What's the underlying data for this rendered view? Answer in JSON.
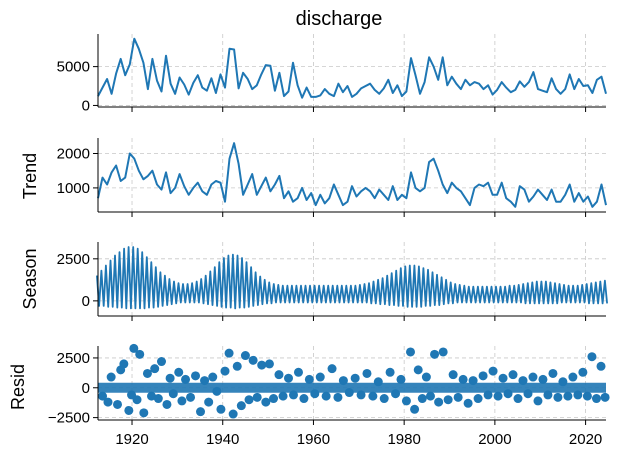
{
  "chart_data": {
    "type": "line",
    "title": "discharge",
    "xlabel": "",
    "xlim": [
      1912.5,
      2024.5
    ],
    "x_ticks": [
      1920,
      1940,
      1960,
      1980,
      2000,
      2020
    ],
    "x_tick_labels": [
      "1920",
      "1940",
      "1960",
      "1980",
      "2000",
      "2020"
    ],
    "colors": {
      "series": "#1f77b4",
      "grid": "#c8c8c8",
      "axis": "#000000"
    },
    "grid": true,
    "panels": [
      {
        "id": "observed",
        "ylabel": "",
        "ylim": [
          -200,
          9200
        ],
        "yticks": [
          0,
          5000
        ],
        "ytick_labels": [
          "0",
          "5000"
        ],
        "style": "line",
        "x": [
          1912.5,
          1913.5,
          1914.5,
          1915.5,
          1916.5,
          1917.5,
          1918.5,
          1919.5,
          1920.5,
          1921.5,
          1922.5,
          1923.5,
          1924.5,
          1925.5,
          1926.5,
          1927.5,
          1928.5,
          1929.5,
          1930.5,
          1931.5,
          1932.5,
          1933.5,
          1934.5,
          1935.5,
          1936.5,
          1937.5,
          1938.5,
          1939.5,
          1940.5,
          1941.5,
          1942.5,
          1943.5,
          1944.5,
          1945.5,
          1946.5,
          1947.5,
          1948.5,
          1949.5,
          1950.5,
          1951.5,
          1952.5,
          1953.5,
          1954.5,
          1955.5,
          1956.5,
          1957.5,
          1958.5,
          1959.5,
          1960.5,
          1961.5,
          1962.5,
          1963.5,
          1964.5,
          1965.5,
          1966.5,
          1967.5,
          1968.5,
          1969.5,
          1970.5,
          1971.5,
          1972.5,
          1973.5,
          1974.5,
          1975.5,
          1976.5,
          1977.5,
          1978.5,
          1979.5,
          1980.5,
          1981.5,
          1982.5,
          1983.5,
          1984.5,
          1985.5,
          1986.5,
          1987.5,
          1988.5,
          1989.5,
          1990.5,
          1991.5,
          1992.5,
          1993.5,
          1994.5,
          1995.5,
          1996.5,
          1997.5,
          1998.5,
          1999.5,
          2000.5,
          2001.5,
          2002.5,
          2003.5,
          2004.5,
          2005.5,
          2006.5,
          2007.5,
          2008.5,
          2009.5,
          2010.5,
          2011.5,
          2012.5,
          2013.5,
          2014.5,
          2015.5,
          2016.5,
          2017.5,
          2018.5,
          2019.5,
          2020.5,
          2021.5,
          2022.5,
          2023.5,
          2024.5
        ],
        "y": [
          1200,
          2300,
          3400,
          1500,
          4100,
          6000,
          3900,
          5300,
          8600,
          7300,
          5500,
          2100,
          6000,
          3200,
          1800,
          6400,
          2800,
          1500,
          3600,
          2700,
          1400,
          2900,
          3900,
          2300,
          1900,
          3500,
          1600,
          4000,
          2300,
          7300,
          7200,
          2200,
          4200,
          3400,
          2100,
          2600,
          4000,
          5200,
          5100,
          1900,
          4200,
          1200,
          1800,
          5500,
          2600,
          1000,
          2300,
          1100,
          1100,
          1300,
          2100,
          1500,
          1200,
          2800,
          1700,
          2500,
          1100,
          1500,
          2200,
          2500,
          2800,
          2000,
          1500,
          2200,
          3300,
          1600,
          2600,
          1200,
          1800,
          6100,
          3900,
          1500,
          3000,
          6200,
          5000,
          3300,
          6200,
          2600,
          3700,
          2800,
          2100,
          3300,
          2600,
          3000,
          2800,
          2100,
          2600,
          1400,
          2000,
          3000,
          2300,
          1700,
          2000,
          3100,
          2400,
          3000,
          4300,
          2100,
          1900,
          1700,
          3500,
          2100,
          1500,
          2100,
          4000,
          2100,
          3400,
          2500,
          2600,
          1600,
          3300,
          3700,
          1500
        ]
      },
      {
        "id": "trend",
        "ylabel": "Trend",
        "ylim": [
          300,
          2450
        ],
        "yticks": [
          1000,
          2000
        ],
        "ytick_labels": [
          "1000",
          "2000"
        ],
        "style": "line",
        "x": [
          1912.5,
          1913.5,
          1914.5,
          1915.5,
          1916.5,
          1917.5,
          1918.5,
          1919.5,
          1920.5,
          1921.5,
          1922.5,
          1923.5,
          1924.5,
          1925.5,
          1926.5,
          1927.5,
          1928.5,
          1929.5,
          1930.5,
          1931.5,
          1932.5,
          1933.5,
          1934.5,
          1935.5,
          1936.5,
          1937.5,
          1938.5,
          1939.5,
          1940.5,
          1941.5,
          1942.5,
          1943.5,
          1944.5,
          1945.5,
          1946.5,
          1947.5,
          1948.5,
          1949.5,
          1950.5,
          1951.5,
          1952.5,
          1953.5,
          1954.5,
          1955.5,
          1956.5,
          1957.5,
          1958.5,
          1959.5,
          1960.5,
          1961.5,
          1962.5,
          1963.5,
          1964.5,
          1965.5,
          1966.5,
          1967.5,
          1968.5,
          1969.5,
          1970.5,
          1971.5,
          1972.5,
          1973.5,
          1974.5,
          1975.5,
          1976.5,
          1977.5,
          1978.5,
          1979.5,
          1980.5,
          1981.5,
          1982.5,
          1983.5,
          1984.5,
          1985.5,
          1986.5,
          1987.5,
          1988.5,
          1989.5,
          1990.5,
          1991.5,
          1992.5,
          1993.5,
          1994.5,
          1995.5,
          1996.5,
          1997.5,
          1998.5,
          1999.5,
          2000.5,
          2001.5,
          2002.5,
          2003.5,
          2004.5,
          2005.5,
          2006.5,
          2007.5,
          2008.5,
          2009.5,
          2010.5,
          2011.5,
          2012.5,
          2013.5,
          2014.5,
          2015.5,
          2016.5,
          2017.5,
          2018.5,
          2019.5,
          2020.5,
          2021.5,
          2022.5,
          2023.5,
          2024.5
        ],
        "y": [
          700,
          1300,
          1100,
          1450,
          1650,
          1200,
          1300,
          2000,
          1850,
          1500,
          1250,
          1350,
          1500,
          1100,
          950,
          1450,
          850,
          1000,
          1400,
          1050,
          800,
          1000,
          1150,
          900,
          800,
          1100,
          1200,
          1150,
          600,
          1850,
          2300,
          1700,
          800,
          1100,
          1400,
          800,
          1050,
          1300,
          900,
          1100,
          1350,
          700,
          900,
          600,
          700,
          1000,
          650,
          850,
          500,
          800,
          550,
          700,
          1100,
          800,
          500,
          600,
          1050,
          750,
          900,
          1000,
          900,
          700,
          950,
          800,
          650,
          1050,
          650,
          800,
          700,
          1450,
          1000,
          900,
          1000,
          1750,
          1850,
          1500,
          1100,
          850,
          1150,
          1000,
          900,
          700,
          500,
          1000,
          1100,
          1050,
          1150,
          800,
          800,
          1150,
          700,
          600,
          450,
          1050,
          950,
          600,
          750,
          950,
          800,
          650,
          950,
          600,
          600,
          800,
          1100,
          600,
          850,
          600,
          750,
          450,
          600,
          1100,
          500
        ]
      },
      {
        "id": "season",
        "ylabel": "Season",
        "ylim": [
          -900,
          3500
        ],
        "yticks": [
          0,
          2500
        ],
        "ytick_labels": [
          "0",
          "2500"
        ],
        "style": "oscillation",
        "x": [
          1912.5,
          1913.5,
          1914.5,
          1915.5,
          1916.5,
          1917.5,
          1918.5,
          1919.5,
          1920.5,
          1921.5,
          1922.5,
          1923.5,
          1924.5,
          1925.5,
          1926.5,
          1927.5,
          1928.5,
          1929.5,
          1930.5,
          1931.5,
          1932.5,
          1933.5,
          1934.5,
          1935.5,
          1936.5,
          1937.5,
          1938.5,
          1939.5,
          1940.5,
          1941.5,
          1942.5,
          1943.5,
          1944.5,
          1945.5,
          1946.5,
          1947.5,
          1948.5,
          1949.5,
          1950.5,
          1951.5,
          1952.5,
          1953.5,
          1954.5,
          1955.5,
          1956.5,
          1957.5,
          1958.5,
          1959.5,
          1960.5,
          1961.5,
          1962.5,
          1963.5,
          1964.5,
          1965.5,
          1966.5,
          1967.5,
          1968.5,
          1969.5,
          1970.5,
          1971.5,
          1972.5,
          1973.5,
          1974.5,
          1975.5,
          1976.5,
          1977.5,
          1978.5,
          1979.5,
          1980.5,
          1981.5,
          1982.5,
          1983.5,
          1984.5,
          1985.5,
          1986.5,
          1987.5,
          1988.5,
          1989.5,
          1990.5,
          1991.5,
          1992.5,
          1993.5,
          1994.5,
          1995.5,
          1996.5,
          1997.5,
          1998.5,
          1999.5,
          2000.5,
          2001.5,
          2002.5,
          2003.5,
          2004.5,
          2005.5,
          2006.5,
          2007.5,
          2008.5,
          2009.5,
          2010.5,
          2011.5,
          2012.5,
          2013.5,
          2014.5,
          2015.5,
          2016.5,
          2017.5,
          2018.5,
          2019.5,
          2020.5,
          2021.5,
          2022.5,
          2023.5,
          2024.5
        ],
        "high": [
          1500,
          1800,
          2100,
          2400,
          2700,
          2900,
          3100,
          3200,
          3200,
          3100,
          2900,
          2600,
          2300,
          2000,
          1700,
          1500,
          1300,
          1150,
          1050,
          1000,
          1000,
          1050,
          1150,
          1300,
          1500,
          1750,
          2000,
          2300,
          2550,
          2700,
          2750,
          2700,
          2550,
          2300,
          2000,
          1700,
          1450,
          1250,
          1100,
          1000,
          950,
          900,
          900,
          900,
          900,
          900,
          900,
          900,
          900,
          900,
          900,
          900,
          900,
          900,
          900,
          900,
          900,
          900,
          950,
          1000,
          1050,
          1150,
          1250,
          1350,
          1500,
          1650,
          1800,
          1950,
          2050,
          2100,
          2100,
          2050,
          1950,
          1850,
          1700,
          1550,
          1400,
          1250,
          1100,
          1000,
          950,
          900,
          850,
          850,
          850,
          850,
          850,
          850,
          850,
          850,
          850,
          900,
          900,
          950,
          1000,
          1050,
          1100,
          1150,
          1150,
          1150,
          1100,
          1050,
          1000,
          950,
          900,
          900,
          900,
          950,
          1000,
          1050,
          1100,
          1150,
          1200
        ],
        "low": [
          -300,
          -300,
          -350,
          -350,
          -400,
          -400,
          -450,
          -450,
          -450,
          -450,
          -450,
          -400,
          -400,
          -350,
          -300,
          -250,
          -200,
          -150,
          -100,
          -100,
          -100,
          -100,
          -100,
          -150,
          -200,
          -250,
          -300,
          -350,
          -400,
          -400,
          -450,
          -400,
          -400,
          -350,
          -300,
          -250,
          -200,
          -150,
          -150,
          -100,
          -100,
          -100,
          -100,
          -100,
          -100,
          -100,
          -100,
          -100,
          -100,
          -100,
          -100,
          -100,
          -100,
          -100,
          -100,
          -100,
          -100,
          -100,
          -100,
          -100,
          -150,
          -150,
          -200,
          -200,
          -250,
          -250,
          -300,
          -300,
          -350,
          -350,
          -350,
          -350,
          -300,
          -300,
          -250,
          -250,
          -200,
          -150,
          -150,
          -100,
          -100,
          -100,
          -100,
          -100,
          -100,
          -100,
          -100,
          -100,
          -100,
          -100,
          -100,
          -100,
          -100,
          -100,
          -150,
          -150,
          -150,
          -150,
          -150,
          -150,
          -150,
          -150,
          -100,
          -100,
          -100,
          -100,
          -100,
          -100,
          -150,
          -150,
          -150,
          -150,
          -150
        ]
      },
      {
        "id": "resid",
        "ylabel": "Resid",
        "ylim": [
          -2700,
          3500
        ],
        "yticks": [
          -2500,
          0,
          2500
        ],
        "ytick_labels": [
          "−2500",
          "0",
          "2500"
        ],
        "style": "scatter",
        "x": [
          1913.5,
          1914.7,
          1915.4,
          1916.8,
          1917.5,
          1918.2,
          1919.3,
          1919.9,
          1920.4,
          1921.1,
          1921.7,
          1922.6,
          1923.4,
          1924.3,
          1925.0,
          1925.8,
          1926.5,
          1927.7,
          1928.4,
          1929.1,
          1930.3,
          1931.0,
          1931.8,
          1932.9,
          1934.0,
          1935.1,
          1936.0,
          1936.9,
          1937.8,
          1938.7,
          1939.6,
          1940.5,
          1941.4,
          1942.3,
          1943.2,
          1944.1,
          1945.0,
          1945.8,
          1946.7,
          1947.6,
          1948.6,
          1949.5,
          1950.3,
          1951.2,
          1952.4,
          1953.3,
          1954.5,
          1955.6,
          1956.7,
          1957.9,
          1959.1,
          1960.3,
          1961.5,
          1962.8,
          1964.1,
          1965.4,
          1966.6,
          1967.9,
          1969.2,
          1970.5,
          1971.8,
          1973.1,
          1974.3,
          1975.6,
          1976.9,
          1978.1,
          1979.3,
          1980.5,
          1981.4,
          1982.3,
          1983.1,
          1984.0,
          1984.9,
          1985.8,
          1986.7,
          1987.6,
          1988.6,
          1989.7,
          1990.8,
          1991.9,
          1993.0,
          1994.1,
          1995.2,
          1996.3,
          1997.4,
          1998.5,
          1999.6,
          2000.7,
          2001.8,
          2002.9,
          2004.0,
          2005.1,
          2006.2,
          2007.3,
          2008.4,
          2009.5,
          2010.6,
          2011.7,
          2012.8,
          2013.9,
          2015.0,
          2016.1,
          2017.2,
          2018.3,
          2019.4,
          2020.4,
          2021.4,
          2022.4,
          2023.4,
          2024.3
        ],
        "y": [
          -700,
          -1200,
          900,
          -1400,
          1500,
          2000,
          -1900,
          -600,
          3300,
          -1000,
          2800,
          -2100,
          1200,
          -700,
          1600,
          -900,
          2200,
          -1400,
          800,
          -500,
          1300,
          -1100,
          700,
          -800,
          1000,
          -2000,
          600,
          -1200,
          900,
          -300,
          -1800,
          1400,
          2900,
          -2200,
          1800,
          -1500,
          2700,
          -1000,
          2300,
          -800,
          1900,
          -1200,
          2000,
          -900,
          1100,
          -700,
          800,
          -600,
          1300,
          -900,
          700,
          -500,
          900,
          -700,
          1600,
          -800,
          600,
          -400,
          800,
          -600,
          1200,
          -700,
          500,
          -900,
          1300,
          -500,
          700,
          -1100,
          3000,
          -1800,
          1500,
          -900,
          900,
          -700,
          2800,
          -1200,
          3000,
          -1000,
          1100,
          -800,
          700,
          -1300,
          600,
          -900,
          1000,
          -600,
          1400,
          -700,
          800,
          -500,
          1100,
          -900,
          600,
          -500,
          900,
          -1100,
          700,
          -600,
          1200,
          -800,
          500,
          -700,
          900,
          -600,
          1300,
          -700,
          2600,
          -900,
          1800,
          -800
        ]
      }
    ]
  }
}
